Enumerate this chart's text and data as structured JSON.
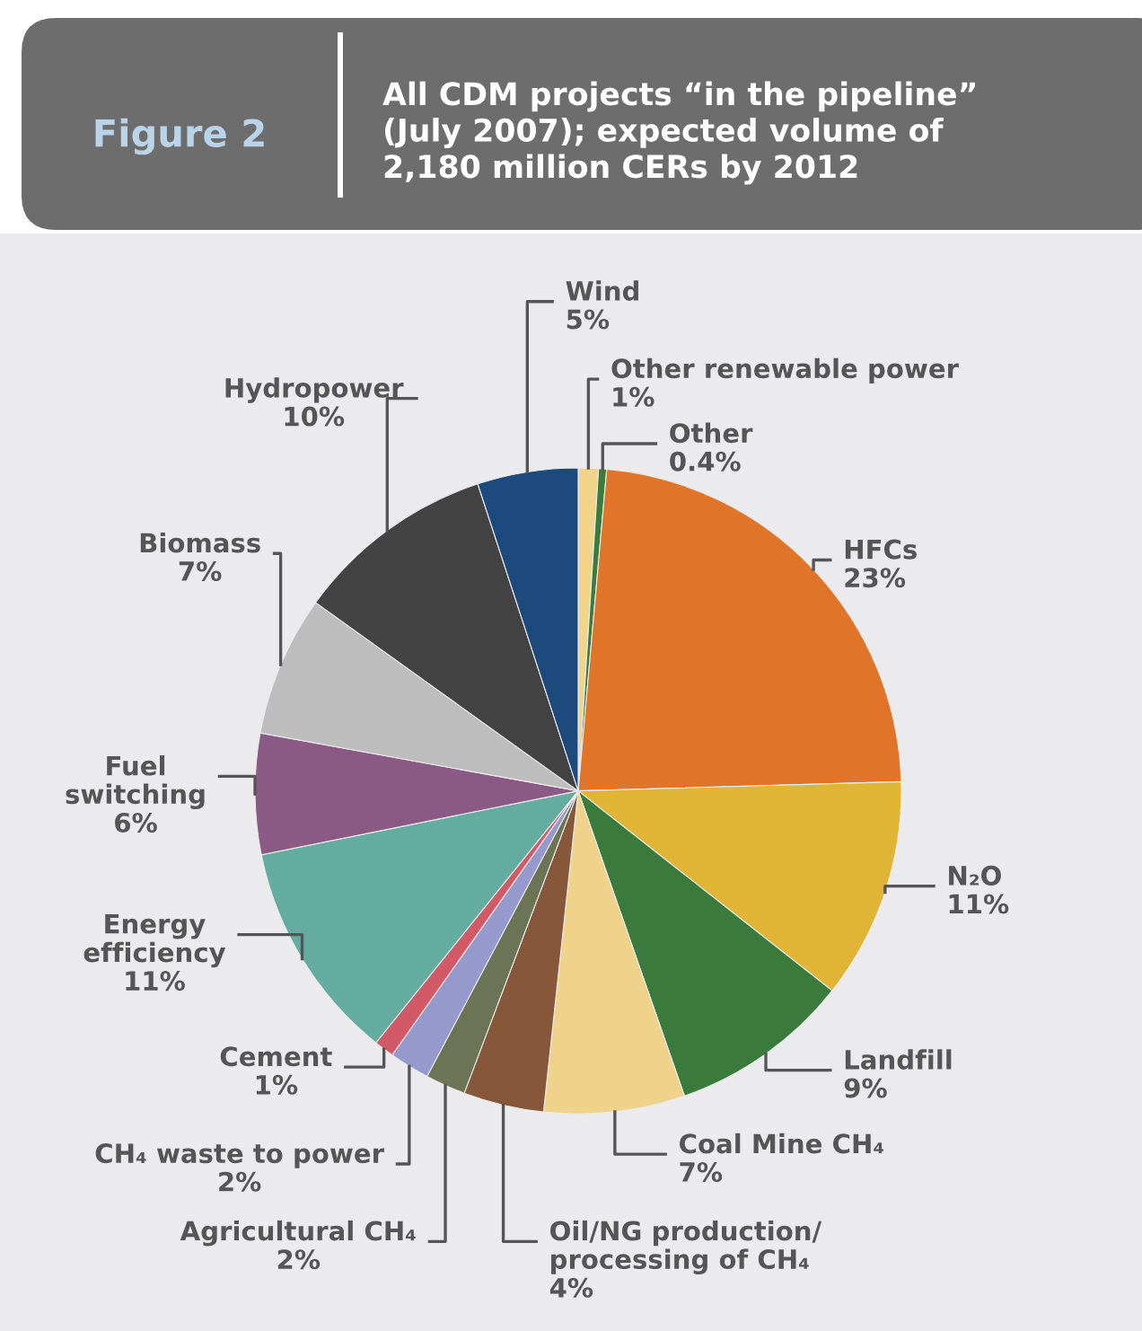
{
  "chart_data": {
    "type": "pie",
    "title": "Figure 2",
    "subtitle": "All CDM projects “in the pipeline”\n(July 2007); expected volume of\n2,180 million CERs by 2012",
    "categories": [
      "Other renewable power",
      "Other",
      "HFCs",
      "N₂O",
      "Landfill",
      "Coal Mine CH₄",
      "Oil/NG production/\nprocessing of CH₄",
      "Agricultural CH₄",
      "CH₄ waste to power",
      "Cement",
      "Energy\nefficiency",
      "Fuel\nswitching",
      "Biomass",
      "Hydropower",
      "Wind"
    ],
    "values": [
      1,
      0.4,
      23,
      11,
      9,
      7,
      4,
      2,
      2,
      1,
      11,
      6,
      7,
      10,
      5
    ],
    "value_labels": [
      "1%",
      "0.4%",
      "23%",
      "11%",
      "9%",
      "7%",
      "4%",
      "2%",
      "2%",
      "1%",
      "11%",
      "6%",
      "7%",
      "10%",
      "5%"
    ],
    "colors": [
      "#f0d48a",
      "#3a7d3a",
      "#e07428",
      "#e0b434",
      "#3a7a3c",
      "#efd38a",
      "#87573a",
      "#6b7556",
      "#9699cc",
      "#d15a66",
      "#64ac9f",
      "#8a5a85",
      "#bdbdbd",
      "#434343",
      "#1c4a7c"
    ]
  }
}
